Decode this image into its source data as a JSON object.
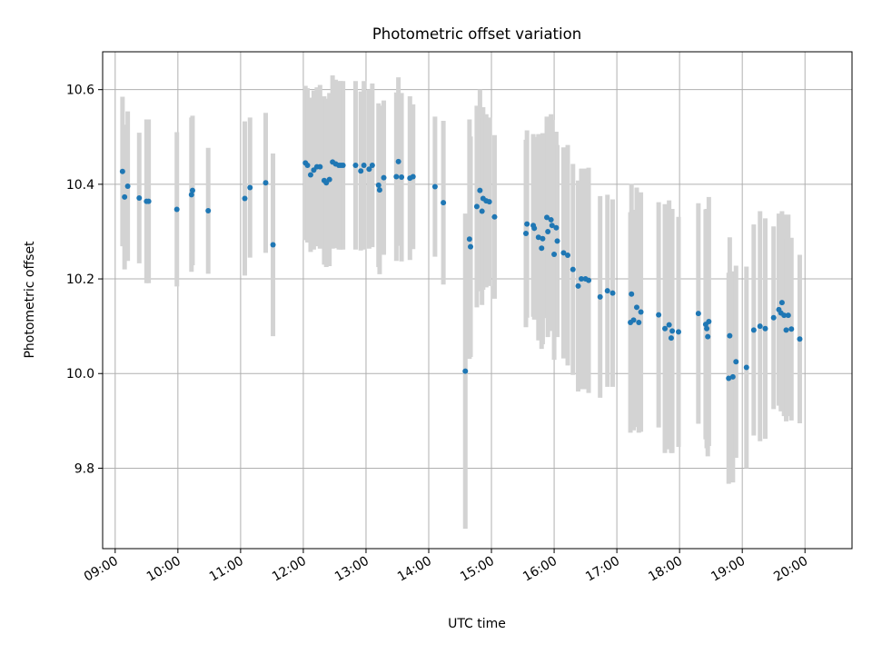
{
  "chart_data": {
    "type": "scatter",
    "title": "Photometric offset variation",
    "xlabel": "UTC time",
    "ylabel": "Photometric offset",
    "x_ticks": [
      "09:00",
      "10:00",
      "11:00",
      "12:00",
      "13:00",
      "14:00",
      "15:00",
      "16:00",
      "17:00",
      "18:00",
      "19:00",
      "20:00"
    ],
    "y_ticks": [
      "9.8",
      "10.0",
      "10.2",
      "10.4",
      "10.6"
    ],
    "xlim": [
      "08:48",
      "20:45"
    ],
    "ylim": [
      9.63,
      10.68
    ],
    "grid": true,
    "series": [
      {
        "marker_color": "#1f77b4",
        "errorbar_color": "#d3d3d3",
        "points": [
          {
            "t": "09:07",
            "y": 10.427,
            "e": 0.158
          },
          {
            "t": "09:09",
            "y": 10.373,
            "e": 0.153
          },
          {
            "t": "09:12",
            "y": 10.396,
            "e": 0.158
          },
          {
            "t": "09:23",
            "y": 10.371,
            "e": 0.138
          },
          {
            "t": "09:30",
            "y": 10.364,
            "e": 0.173
          },
          {
            "t": "09:32",
            "y": 10.364,
            "e": 0.173
          },
          {
            "t": "09:59",
            "y": 10.347,
            "e": 0.163
          },
          {
            "t": "10:13",
            "y": 10.378,
            "e": 0.163
          },
          {
            "t": "10:14",
            "y": 10.387,
            "e": 0.158
          },
          {
            "t": "10:29",
            "y": 10.344,
            "e": 0.133
          },
          {
            "t": "11:04",
            "y": 10.37,
            "e": 0.163
          },
          {
            "t": "11:09",
            "y": 10.393,
            "e": 0.148
          },
          {
            "t": "11:24",
            "y": 10.403,
            "e": 0.148
          },
          {
            "t": "11:31",
            "y": 10.272,
            "e": 0.193
          },
          {
            "t": "12:02",
            "y": 10.445,
            "e": 0.163
          },
          {
            "t": "12:04",
            "y": 10.44,
            "e": 0.163
          },
          {
            "t": "12:07",
            "y": 10.42,
            "e": 0.163
          },
          {
            "t": "12:10",
            "y": 10.43,
            "e": 0.168
          },
          {
            "t": "12:13",
            "y": 10.437,
            "e": 0.168
          },
          {
            "t": "12:16",
            "y": 10.437,
            "e": 0.173
          },
          {
            "t": "12:20",
            "y": 10.408,
            "e": 0.178
          },
          {
            "t": "12:22",
            "y": 10.403,
            "e": 0.178
          },
          {
            "t": "12:25",
            "y": 10.41,
            "e": 0.183
          },
          {
            "t": "12:28",
            "y": 10.447,
            "e": 0.183
          },
          {
            "t": "12:31",
            "y": 10.443,
            "e": 0.178
          },
          {
            "t": "12:34",
            "y": 10.44,
            "e": 0.178
          },
          {
            "t": "12:36",
            "y": 10.44,
            "e": 0.178
          },
          {
            "t": "12:38",
            "y": 10.44,
            "e": 0.178
          },
          {
            "t": "12:50",
            "y": 10.44,
            "e": 0.178
          },
          {
            "t": "12:55",
            "y": 10.428,
            "e": 0.168
          },
          {
            "t": "12:58",
            "y": 10.44,
            "e": 0.178
          },
          {
            "t": "13:03",
            "y": 10.432,
            "e": 0.168
          },
          {
            "t": "13:06",
            "y": 10.44,
            "e": 0.173
          },
          {
            "t": "13:12",
            "y": 10.398,
            "e": 0.173
          },
          {
            "t": "13:13",
            "y": 10.388,
            "e": 0.178
          },
          {
            "t": "13:17",
            "y": 10.414,
            "e": 0.163
          },
          {
            "t": "13:29",
            "y": 10.416,
            "e": 0.178
          },
          {
            "t": "13:31",
            "y": 10.448,
            "e": 0.178
          },
          {
            "t": "13:34",
            "y": 10.415,
            "e": 0.178
          },
          {
            "t": "13:42",
            "y": 10.413,
            "e": 0.173
          },
          {
            "t": "13:45",
            "y": 10.416,
            "e": 0.153
          },
          {
            "t": "14:06",
            "y": 10.395,
            "e": 0.148
          },
          {
            "t": "14:14",
            "y": 10.361,
            "e": 0.173
          },
          {
            "t": "14:35",
            "y": 10.005,
            "e": 0.333
          },
          {
            "t": "14:39",
            "y": 10.284,
            "e": 0.253
          },
          {
            "t": "14:40",
            "y": 10.268,
            "e": 0.233
          },
          {
            "t": "14:46",
            "y": 10.353,
            "e": 0.213
          },
          {
            "t": "14:49",
            "y": 10.387,
            "e": 0.213
          },
          {
            "t": "14:51",
            "y": 10.343,
            "e": 0.198
          },
          {
            "t": "14:52",
            "y": 10.37,
            "e": 0.193
          },
          {
            "t": "14:55",
            "y": 10.365,
            "e": 0.183
          },
          {
            "t": "14:58",
            "y": 10.363,
            "e": 0.178
          },
          {
            "t": "15:03",
            "y": 10.331,
            "e": 0.173
          },
          {
            "t": "15:33",
            "y": 10.296,
            "e": 0.198
          },
          {
            "t": "15:34",
            "y": 10.316,
            "e": 0.198
          },
          {
            "t": "15:40",
            "y": 10.313,
            "e": 0.193
          },
          {
            "t": "15:41",
            "y": 10.307,
            "e": 0.193
          },
          {
            "t": "15:45",
            "y": 10.288,
            "e": 0.218
          },
          {
            "t": "15:48",
            "y": 10.265,
            "e": 0.213
          },
          {
            "t": "15:49",
            "y": 10.285,
            "e": 0.223
          },
          {
            "t": "15:53",
            "y": 10.33,
            "e": 0.213
          },
          {
            "t": "15:54",
            "y": 10.3,
            "e": 0.223
          },
          {
            "t": "15:57",
            "y": 10.325,
            "e": 0.223
          },
          {
            "t": "15:58",
            "y": 10.313,
            "e": 0.223
          },
          {
            "t": "16:00",
            "y": 10.252,
            "e": 0.223
          },
          {
            "t": "16:02",
            "y": 10.308,
            "e": 0.203
          },
          {
            "t": "16:03",
            "y": 10.28,
            "e": 0.203
          },
          {
            "t": "16:09",
            "y": 10.255,
            "e": 0.223
          },
          {
            "t": "16:13",
            "y": 10.25,
            "e": 0.233
          },
          {
            "t": "16:18",
            "y": 10.22,
            "e": 0.223
          },
          {
            "t": "16:23",
            "y": 10.185,
            "e": 0.223
          },
          {
            "t": "16:26",
            "y": 10.2,
            "e": 0.233
          },
          {
            "t": "16:30",
            "y": 10.2,
            "e": 0.233
          },
          {
            "t": "16:33",
            "y": 10.197,
            "e": 0.238
          },
          {
            "t": "16:44",
            "y": 10.162,
            "e": 0.213
          },
          {
            "t": "16:51",
            "y": 10.175,
            "e": 0.203
          },
          {
            "t": "16:56",
            "y": 10.17,
            "e": 0.198
          },
          {
            "t": "17:13",
            "y": 10.108,
            "e": 0.233
          },
          {
            "t": "17:14",
            "y": 10.168,
            "e": 0.233
          },
          {
            "t": "17:16",
            "y": 10.113,
            "e": 0.233
          },
          {
            "t": "17:19",
            "y": 10.14,
            "e": 0.253
          },
          {
            "t": "17:21",
            "y": 10.108,
            "e": 0.233
          },
          {
            "t": "17:23",
            "y": 10.13,
            "e": 0.253
          },
          {
            "t": "17:40",
            "y": 10.124,
            "e": 0.238
          },
          {
            "t": "17:46",
            "y": 10.095,
            "e": 0.263
          },
          {
            "t": "17:50",
            "y": 10.103,
            "e": 0.263
          },
          {
            "t": "17:52",
            "y": 10.075,
            "e": 0.243
          },
          {
            "t": "17:53",
            "y": 10.09,
            "e": 0.258
          },
          {
            "t": "17:59",
            "y": 10.088,
            "e": 0.243
          },
          {
            "t": "18:18",
            "y": 10.127,
            "e": 0.233
          },
          {
            "t": "18:25",
            "y": 10.104,
            "e": 0.243
          },
          {
            "t": "18:26",
            "y": 10.095,
            "e": 0.253
          },
          {
            "t": "18:27",
            "y": 10.078,
            "e": 0.253
          },
          {
            "t": "18:28",
            "y": 10.11,
            "e": 0.263
          },
          {
            "t": "18:47",
            "y": 9.99,
            "e": 0.223
          },
          {
            "t": "18:48",
            "y": 10.08,
            "e": 0.208
          },
          {
            "t": "18:51",
            "y": 9.993,
            "e": 0.223
          },
          {
            "t": "18:54",
            "y": 10.025,
            "e": 0.203
          },
          {
            "t": "19:04",
            "y": 10.013,
            "e": 0.213
          },
          {
            "t": "19:11",
            "y": 10.092,
            "e": 0.223
          },
          {
            "t": "19:17",
            "y": 10.1,
            "e": 0.243
          },
          {
            "t": "19:22",
            "y": 10.095,
            "e": 0.233
          },
          {
            "t": "19:30",
            "y": 10.118,
            "e": 0.193
          },
          {
            "t": "19:35",
            "y": 10.135,
            "e": 0.203
          },
          {
            "t": "19:37",
            "y": 10.128,
            "e": 0.208
          },
          {
            "t": "19:38",
            "y": 10.15,
            "e": 0.193
          },
          {
            "t": "19:40",
            "y": 10.123,
            "e": 0.213
          },
          {
            "t": "19:42",
            "y": 10.092,
            "e": 0.193
          },
          {
            "t": "19:44",
            "y": 10.123,
            "e": 0.213
          },
          {
            "t": "19:47",
            "y": 10.094,
            "e": 0.193
          },
          {
            "t": "19:55",
            "y": 10.073,
            "e": 0.178
          }
        ]
      }
    ]
  }
}
